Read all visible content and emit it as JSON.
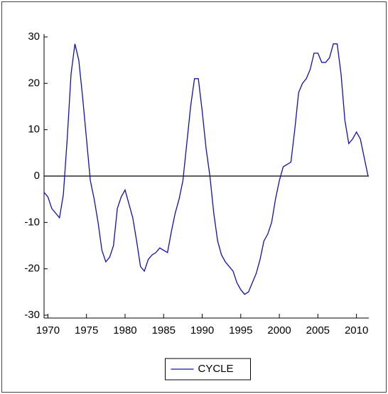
{
  "chart_data": {
    "type": "line",
    "x": [
      1969.5,
      1970,
      1970.5,
      1971,
      1971.5,
      1972,
      1972.5,
      1973,
      1973.5,
      1974,
      1974.5,
      1975,
      1975.5,
      1976,
      1976.5,
      1977,
      1977.5,
      1978,
      1978.5,
      1979,
      1979.5,
      1980,
      1980.5,
      1981,
      1981.5,
      1982,
      1982.5,
      1983,
      1983.5,
      1984,
      1984.5,
      1985,
      1985.5,
      1986,
      1986.5,
      1987,
      1987.5,
      1988,
      1988.5,
      1989,
      1989.5,
      1990,
      1990.5,
      1991,
      1991.5,
      1992,
      1992.5,
      1993,
      1993.5,
      1994,
      1994.5,
      1995,
      1995.5,
      1996,
      1996.5,
      1997,
      1997.5,
      1998,
      1998.5,
      1999,
      1999.5,
      2000,
      2000.5,
      2001,
      2001.5,
      2002,
      2002.5,
      2003,
      2003.5,
      2004,
      2004.5,
      2005,
      2005.5,
      2006,
      2006.5,
      2007,
      2007.5,
      2008,
      2008.5,
      2009,
      2009.5,
      2010,
      2010.5,
      2011,
      2011.5
    ],
    "series": [
      {
        "name": "CYCLE",
        "color": "#1010b0",
        "values": [
          -3.5,
          -4.5,
          -7,
          -8,
          -9,
          -4,
          8,
          22,
          28.5,
          25,
          17,
          8,
          -1,
          -5,
          -10,
          -16,
          -18.5,
          -17.5,
          -15,
          -7,
          -4.5,
          -3,
          -6,
          -9,
          -14,
          -19.5,
          -20.5,
          -18,
          -17,
          -16.5,
          -15.5,
          -16,
          -16.5,
          -12,
          -8,
          -5,
          -1,
          7,
          15,
          21,
          21,
          14,
          6,
          0,
          -8,
          -14,
          -17,
          -18.5,
          -19.5,
          -20.5,
          -23,
          -24.5,
          -25.5,
          -25,
          -23,
          -21,
          -18,
          -14,
          -12.5,
          -10,
          -5,
          -1,
          2,
          2.5,
          3,
          10,
          18,
          20,
          21,
          23,
          26.5,
          26.5,
          24.5,
          24.5,
          25.5,
          28.5,
          28.5,
          22,
          12,
          7,
          8,
          9.5,
          8,
          4,
          0
        ]
      }
    ],
    "xlim": [
      1969.5,
      2011.6
    ],
    "xticks": [
      1970,
      1975,
      1980,
      1985,
      1990,
      1995,
      2000,
      2005,
      2010
    ],
    "ylim": [
      -30,
      30
    ],
    "yticks": [
      -30,
      -20,
      -10,
      0,
      10,
      20,
      30
    ],
    "zero_line": true,
    "legend": "bottom"
  }
}
